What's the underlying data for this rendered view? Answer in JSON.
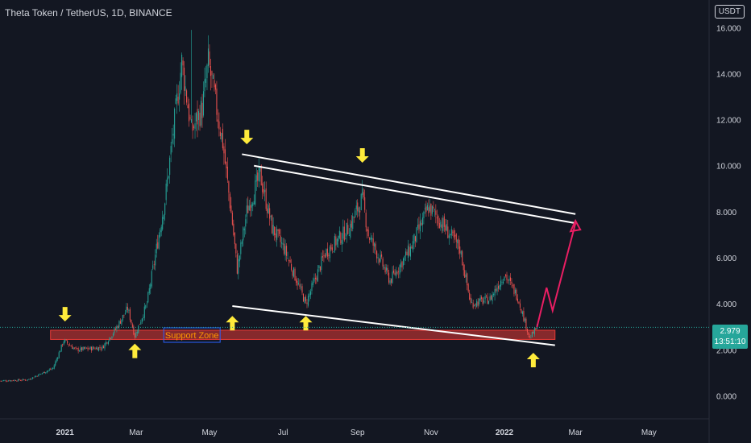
{
  "header": {
    "title": "Theta Token / TetherUS, 1D, BINANCE",
    "currency": "USDT"
  },
  "price_tag": {
    "price": "2.979",
    "countdown": "13:51:10"
  },
  "colors": {
    "background": "#131722",
    "up": "#26a69a",
    "down": "#ef5350",
    "axis_text": "#d1d4dc",
    "support_zone": "#e53935",
    "arrow": "#ffeb3b",
    "projection": "#e91e63",
    "channel": "#ffffff"
  },
  "chart_data": {
    "type": "candlestick",
    "title": "Theta Token / TetherUS, 1D, BINANCE",
    "y_ticks": [
      "0.000",
      "2.000",
      "4.000",
      "6.000",
      "8.000",
      "10.000",
      "12.000",
      "14.000",
      "16.000"
    ],
    "ylim": [
      -1.0,
      17.2
    ],
    "x_ticks": [
      "2021",
      "Mar",
      "May",
      "Jul",
      "Sep",
      "Nov",
      "2022",
      "Mar",
      "May"
    ],
    "x_tick_dates": [
      "2021-01-01",
      "2021-03-01",
      "2021-05-01",
      "2021-07-01",
      "2021-09-01",
      "2021-11-01",
      "2022-01-01",
      "2022-03-01",
      "2022-05-01"
    ],
    "xlim": [
      "2020-11-08",
      "2022-06-20"
    ],
    "series_anchors": [
      {
        "date": "2020-11-08",
        "close": 0.65
      },
      {
        "date": "2020-12-01",
        "close": 0.7
      },
      {
        "date": "2020-12-22",
        "close": 1.2
      },
      {
        "date": "2020-12-31",
        "close": 2.4
      },
      {
        "date": "2021-01-10",
        "close": 2.0
      },
      {
        "date": "2021-02-01",
        "close": 2.1
      },
      {
        "date": "2021-02-12",
        "close": 2.9
      },
      {
        "date": "2021-02-22",
        "close": 3.8
      },
      {
        "date": "2021-02-28",
        "close": 2.6
      },
      {
        "date": "2021-03-10",
        "close": 4.0
      },
      {
        "date": "2021-03-25",
        "close": 8.5
      },
      {
        "date": "2021-04-08",
        "close": 14.5
      },
      {
        "date": "2021-04-16",
        "close": 11.5
      },
      {
        "date": "2021-04-25",
        "close": 12.5
      },
      {
        "date": "2021-04-30",
        "close": 14.5
      },
      {
        "date": "2021-05-12",
        "close": 11.0
      },
      {
        "date": "2021-05-20",
        "close": 7.5
      },
      {
        "date": "2021-05-24",
        "close": 5.5
      },
      {
        "date": "2021-06-01",
        "close": 8.0
      },
      {
        "date": "2021-06-12",
        "close": 9.6
      },
      {
        "date": "2021-06-22",
        "close": 7.3
      },
      {
        "date": "2021-07-02",
        "close": 6.4
      },
      {
        "date": "2021-07-20",
        "close": 4.0
      },
      {
        "date": "2021-08-05",
        "close": 6.2
      },
      {
        "date": "2021-08-25",
        "close": 7.3
      },
      {
        "date": "2021-09-05",
        "close": 8.6
      },
      {
        "date": "2021-09-10",
        "close": 7.0
      },
      {
        "date": "2021-09-28",
        "close": 5.0
      },
      {
        "date": "2021-10-15",
        "close": 6.4
      },
      {
        "date": "2021-10-30",
        "close": 8.2
      },
      {
        "date": "2021-11-10",
        "close": 7.5
      },
      {
        "date": "2021-11-25",
        "close": 6.4
      },
      {
        "date": "2021-12-04",
        "close": 4.0
      },
      {
        "date": "2021-12-20",
        "close": 4.2
      },
      {
        "date": "2022-01-01",
        "close": 5.3
      },
      {
        "date": "2022-01-12",
        "close": 4.3
      },
      {
        "date": "2022-01-22",
        "close": 2.5
      },
      {
        "date": "2022-01-28",
        "close": 2.98
      }
    ],
    "peaks": [
      {
        "date": "2021-04-16",
        "high": 15.9
      }
    ],
    "support_zone": {
      "label": "Support Zone",
      "low": 2.45,
      "high": 2.85,
      "from": "2021-01-01",
      "to": "2022-02-12"
    },
    "channel_top_lines": [
      {
        "from": {
          "date": "2021-05-28",
          "value": 10.5
        },
        "to": {
          "date": "2022-03-01",
          "value": 7.9
        }
      },
      {
        "from": {
          "date": "2021-06-07",
          "value": 10.0
        },
        "to": {
          "date": "2022-03-01",
          "value": 7.5
        }
      }
    ],
    "channel_bottom_line": {
      "from": {
        "date": "2021-05-20",
        "value": 3.9
      },
      "to": {
        "date": "2022-02-12",
        "value": 2.2
      }
    },
    "projection_path": [
      {
        "date": "2022-01-28",
        "value": 2.98
      },
      {
        "date": "2022-02-05",
        "value": 4.7
      },
      {
        "date": "2022-02-10",
        "value": 3.7
      },
      {
        "date": "2022-03-01",
        "value": 7.5
      }
    ],
    "arrows": [
      {
        "direction": "down",
        "date": "2021-01-01",
        "value": 3.3
      },
      {
        "direction": "up",
        "date": "2021-02-28",
        "value": 2.2
      },
      {
        "direction": "up",
        "date": "2021-05-20",
        "value": 3.4
      },
      {
        "direction": "down",
        "date": "2021-06-01",
        "value": 11.0
      },
      {
        "direction": "up",
        "date": "2021-07-20",
        "value": 3.4
      },
      {
        "direction": "down",
        "date": "2021-09-05",
        "value": 10.2
      },
      {
        "direction": "up",
        "date": "2022-01-25",
        "value": 1.8
      }
    ],
    "current_price": 2.979,
    "grid": false,
    "legend": "none"
  }
}
